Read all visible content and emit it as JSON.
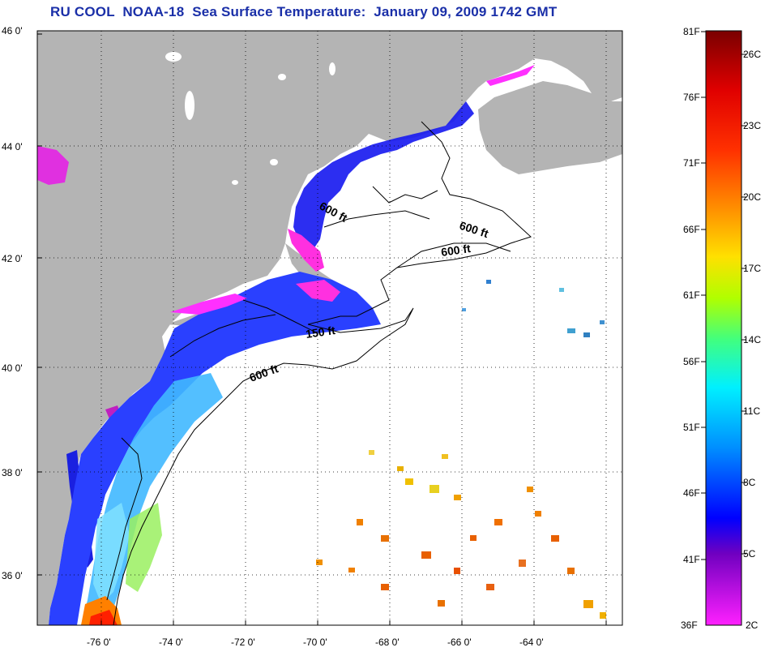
{
  "title": "RU COOL  NOAA-18  Sea Surface Temperature:  January 09, 2009 1742 GMT",
  "lat_ticks": [
    "46 0'",
    "44 0'",
    "42 0'",
    "40 0'",
    "38 0'",
    "36 0'"
  ],
  "lon_ticks": [
    "-76 0'",
    "-74 0'",
    "-72 0'",
    "-70 0'",
    "-68 0'",
    "-66 0'",
    "-64 0'"
  ],
  "contour_labels": [
    "600 ft",
    "600 ft",
    "600 ft",
    "150 ft",
    "600 ft"
  ],
  "colorbar": {
    "f_labels": [
      "81F",
      "76F",
      "71F",
      "66F",
      "61F",
      "56F",
      "51F",
      "46F",
      "41F",
      "36F"
    ],
    "c_labels": [
      "26C",
      "23C",
      "20C",
      "17C",
      "14C",
      "11C",
      "8C",
      "5C",
      "2C"
    ],
    "gradient": [
      "#8b0000",
      "#ff0000",
      "#ff7f00",
      "#ffff00",
      "#7fff00",
      "#00ffff",
      "#0080ff",
      "#0000ff",
      "#8000c0",
      "#ff20ff"
    ]
  },
  "colors": {
    "land": "#b4b4b4",
    "title": "#1a2fa8",
    "ocean_nodata": "#ffffff"
  }
}
